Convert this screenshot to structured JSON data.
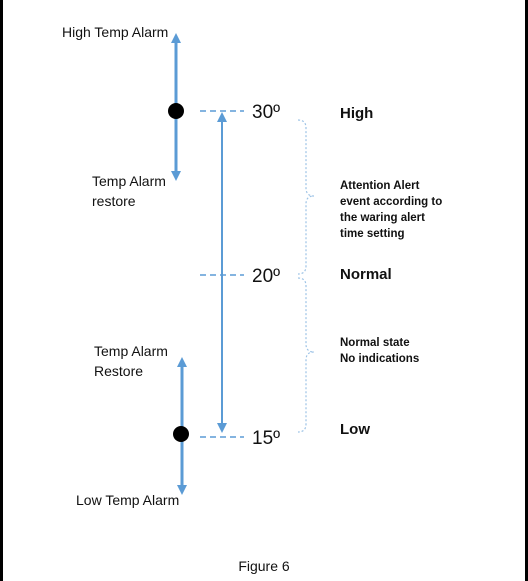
{
  "labels": {
    "high_temp_alarm": "High Temp Alarm",
    "temp_alarm_restore_top_1": "Temp Alarm",
    "temp_alarm_restore_top_2": "restore",
    "temp_alarm_restore_bottom_1": "Temp Alarm",
    "temp_alarm_restore_bottom_2": "Restore",
    "low_temp_alarm": "Low Temp Alarm"
  },
  "levels": [
    {
      "temp": "30º",
      "name": "High"
    },
    {
      "temp": "20º",
      "name": "Normal"
    },
    {
      "temp": "15º",
      "name": "Low"
    }
  ],
  "notes": {
    "attention": [
      "Attention Alert",
      "event according to",
      "the waring alert",
      "time setting"
    ],
    "normal": [
      "Normal state",
      "No indications"
    ]
  },
  "caption": "Figure 6",
  "colors": {
    "arrow": "#5b9bd5",
    "dot": "#000000",
    "brace": "#9dc3e6"
  }
}
